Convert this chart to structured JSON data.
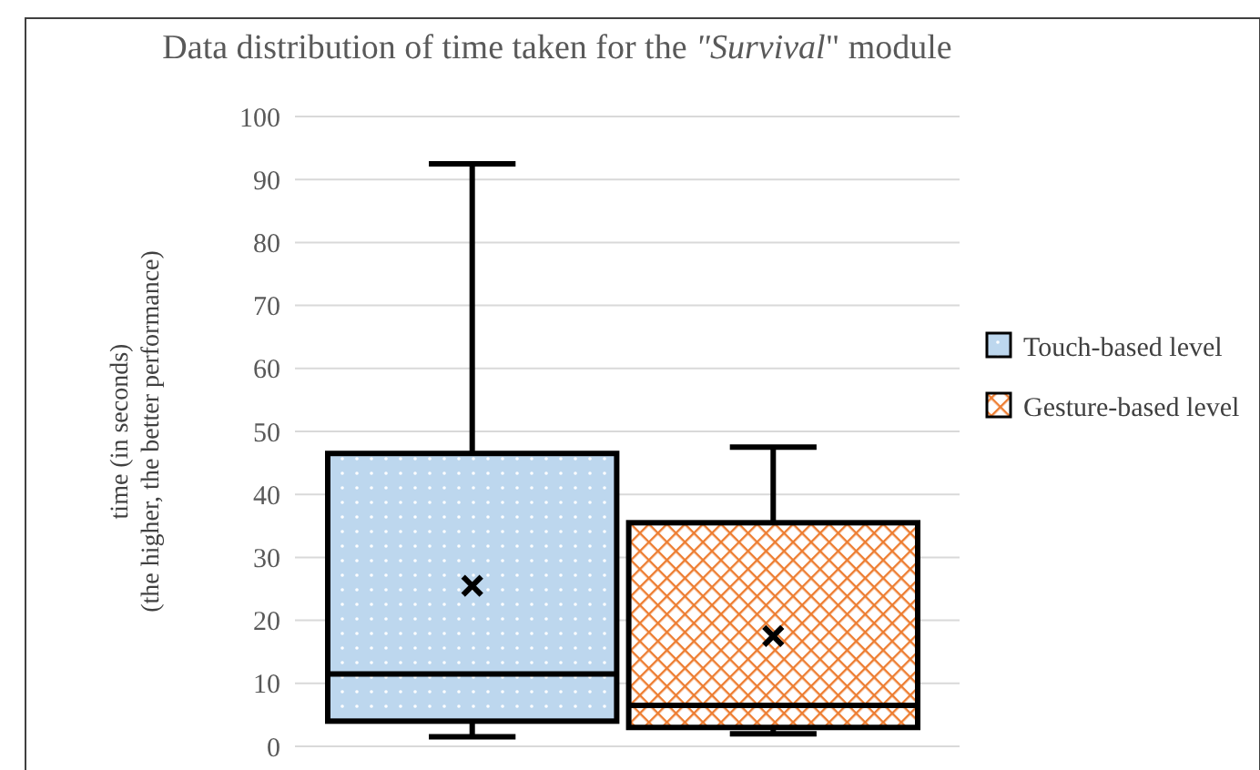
{
  "chart_data": {
    "type": "box",
    "title": "Data distribution of time taken for the \"Survival\" module",
    "ylabel": "time (in seconds)\n(the higher, the better performance)",
    "categories": [
      null
    ],
    "ylim": [
      0,
      100
    ],
    "yticks": [
      0,
      10,
      20,
      30,
      40,
      50,
      60,
      70,
      80,
      90,
      100
    ],
    "grid": "y",
    "legend": "right",
    "tick_labels": "y",
    "marker": "cross",
    "series": [
      {
        "name": "Touch-based level",
        "color": "#bdd7ee",
        "boxes": [
          {
            "low": 1.5,
            "q1": 4,
            "median": 11.5,
            "q3": 46.5,
            "high": 92.5,
            "mean": 25.5
          }
        ]
      },
      {
        "name": "Gesture-based level",
        "color": "#ed7d31",
        "boxes": [
          {
            "low": 2,
            "q1": 3,
            "median": 6.5,
            "q3": 35.5,
            "high": 47.5,
            "mean": 17.5
          }
        ]
      }
    ]
  }
}
